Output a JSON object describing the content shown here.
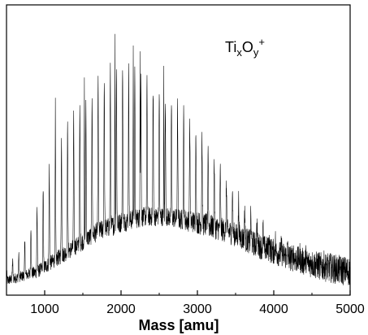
{
  "chart_data": {
    "type": "line",
    "title": "",
    "xlabel": "Mass [amu]",
    "ylabel": "",
    "xlim": [
      500,
      5000
    ],
    "ylim": [
      0,
      1
    ],
    "grid": false,
    "x_ticks": [
      1000,
      2000,
      3000,
      4000,
      5000
    ],
    "y_ticks": [],
    "annotation": {
      "base": "Ti",
      "sub1": "x",
      "mid": "O",
      "sub2": "y",
      "sup": "+"
    },
    "series": [
      {
        "name": "",
        "color": "#000000",
        "peak_spacing_amu": 80,
        "envelope": [
          [
            500,
            0.1
          ],
          [
            700,
            0.15
          ],
          [
            900,
            0.3
          ],
          [
            1100,
            0.47
          ],
          [
            1300,
            0.58
          ],
          [
            1500,
            0.65
          ],
          [
            1700,
            0.73
          ],
          [
            1900,
            0.78
          ],
          [
            2100,
            0.77
          ],
          [
            2300,
            0.74
          ],
          [
            2500,
            0.7
          ],
          [
            2700,
            0.66
          ],
          [
            2900,
            0.6
          ],
          [
            3100,
            0.54
          ],
          [
            3300,
            0.43
          ],
          [
            3500,
            0.35
          ],
          [
            3800,
            0.27
          ],
          [
            4100,
            0.2
          ],
          [
            4500,
            0.15
          ],
          [
            5000,
            0.1
          ]
        ],
        "baseline": [
          [
            500,
            0.05
          ],
          [
            900,
            0.08
          ],
          [
            1300,
            0.15
          ],
          [
            1700,
            0.22
          ],
          [
            2000,
            0.25
          ],
          [
            2300,
            0.27
          ],
          [
            2600,
            0.27
          ],
          [
            3000,
            0.25
          ],
          [
            3400,
            0.22
          ],
          [
            3800,
            0.17
          ],
          [
            4200,
            0.13
          ],
          [
            4600,
            0.1
          ],
          [
            5000,
            0.08
          ]
        ],
        "tall_peaks": [
          [
            1140,
            0.68
          ],
          [
            1520,
            0.75
          ],
          [
            1920,
            0.9
          ],
          [
            2160,
            0.86
          ],
          [
            2250,
            0.84
          ],
          [
            2560,
            0.79
          ]
        ]
      }
    ]
  }
}
